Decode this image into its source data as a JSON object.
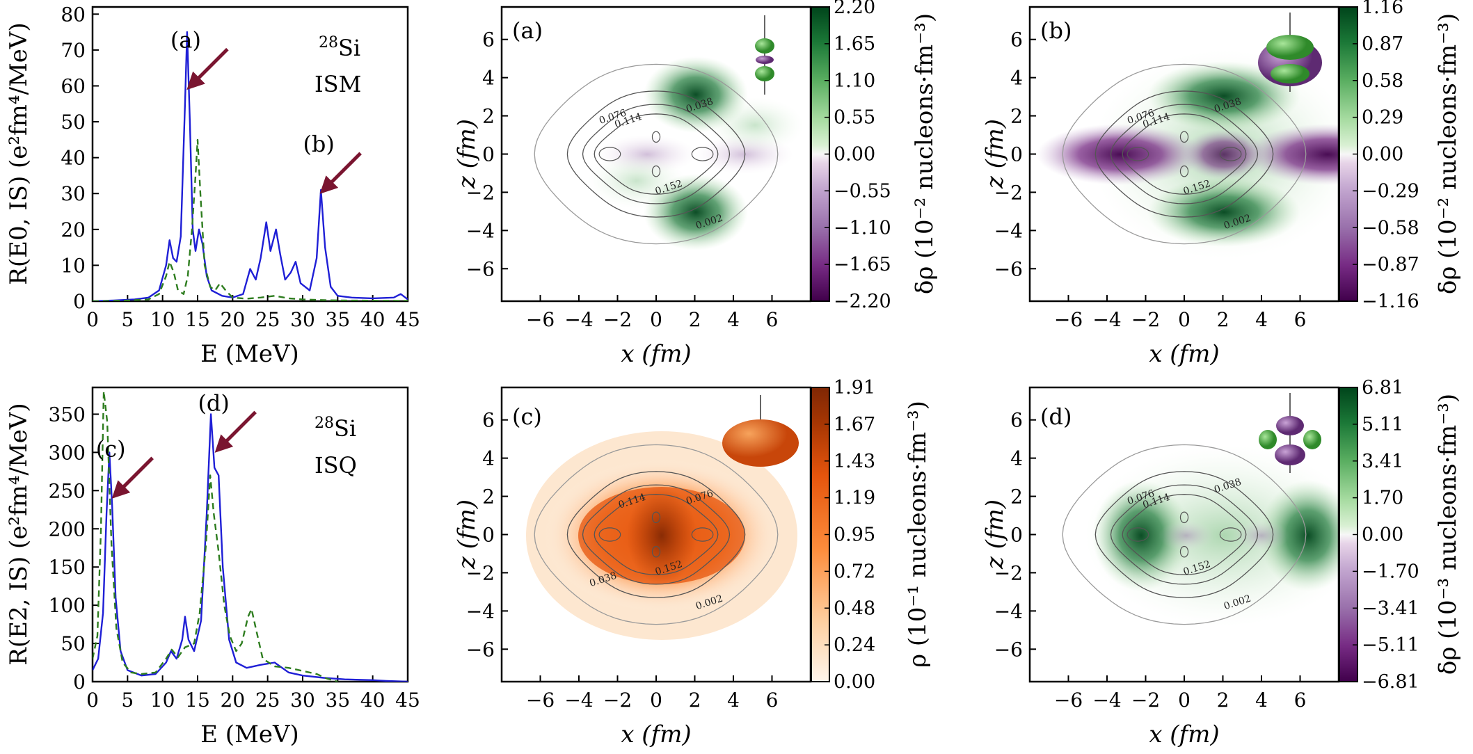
{
  "chart_data": [
    {
      "id": "top-left",
      "type": "line",
      "xlabel": "E (MeV)",
      "ylabel": "R(E0, IS) (e²fm⁴/MeV)",
      "xlim": [
        0,
        45
      ],
      "ylim": [
        0,
        82
      ],
      "xticks": [
        0,
        5,
        10,
        15,
        20,
        25,
        30,
        35,
        40,
        45
      ],
      "yticks": [
        0,
        10,
        20,
        30,
        40,
        50,
        60,
        70,
        80
      ],
      "annotation": {
        "nucleus": "28",
        "element": "Si",
        "mode": "ISM"
      },
      "arrows": [
        {
          "label": "(a)",
          "x": 13.5,
          "y": 59
        },
        {
          "label": "(b)",
          "x": 32.5,
          "y": 30
        }
      ],
      "series": [
        {
          "style": "solid",
          "color": "#1f1fd6",
          "points": [
            [
              0,
              0
            ],
            [
              3,
              0.2
            ],
            [
              6,
              0.5
            ],
            [
              8,
              1
            ],
            [
              9.5,
              3
            ],
            [
              10.5,
              10
            ],
            [
              11,
              17
            ],
            [
              11.5,
              12
            ],
            [
              12,
              11
            ],
            [
              12.6,
              18
            ],
            [
              13.2,
              55
            ],
            [
              13.5,
              75
            ],
            [
              13.9,
              50
            ],
            [
              14.3,
              20
            ],
            [
              14.7,
              14
            ],
            [
              15.2,
              20
            ],
            [
              15.7,
              16
            ],
            [
              16.3,
              7
            ],
            [
              17,
              3
            ],
            [
              18.5,
              1.5
            ],
            [
              20,
              1
            ],
            [
              21.5,
              2
            ],
            [
              22.5,
              9
            ],
            [
              23.3,
              6
            ],
            [
              24,
              12
            ],
            [
              24.8,
              22
            ],
            [
              25.4,
              14
            ],
            [
              26.2,
              20
            ],
            [
              26.8,
              13
            ],
            [
              27.5,
              6
            ],
            [
              28.3,
              8
            ],
            [
              29,
              11
            ],
            [
              29.7,
              5
            ],
            [
              31,
              3
            ],
            [
              32,
              12
            ],
            [
              32.6,
              31
            ],
            [
              33.2,
              15
            ],
            [
              34,
              4
            ],
            [
              35,
              1.5
            ],
            [
              37,
              1
            ],
            [
              40,
              0.8
            ],
            [
              43,
              1
            ],
            [
              44,
              2
            ],
            [
              45,
              0.5
            ]
          ]
        },
        {
          "style": "dashed",
          "color": "#2e7d1f",
          "points": [
            [
              0,
              0
            ],
            [
              5,
              0.2
            ],
            [
              8,
              0.5
            ],
            [
              9.5,
              2
            ],
            [
              10.5,
              7
            ],
            [
              11,
              11
            ],
            [
              11.6,
              8
            ],
            [
              12.2,
              3
            ],
            [
              13,
              2
            ],
            [
              13.6,
              7
            ],
            [
              14.2,
              20
            ],
            [
              14.7,
              35
            ],
            [
              15,
              45
            ],
            [
              15.4,
              30
            ],
            [
              16,
              10
            ],
            [
              16.8,
              4
            ],
            [
              17.5,
              3
            ],
            [
              18.2,
              5
            ],
            [
              19,
              3
            ],
            [
              20,
              1
            ],
            [
              22,
              0.7
            ],
            [
              24,
              1
            ],
            [
              26,
              1.5
            ],
            [
              28,
              0.8
            ],
            [
              30,
              0.5
            ],
            [
              33,
              0.3
            ],
            [
              36,
              0.2
            ],
            [
              45,
              0.1
            ]
          ]
        }
      ]
    },
    {
      "id": "bottom-left",
      "type": "line",
      "xlabel": "E (MeV)",
      "ylabel": "R(E2, IS) (e²fm⁴/MeV)",
      "xlim": [
        0,
        45
      ],
      "ylim": [
        0,
        385
      ],
      "xticks": [
        0,
        5,
        10,
        15,
        20,
        25,
        30,
        35,
        40,
        45
      ],
      "yticks": [
        0,
        50,
        100,
        150,
        200,
        250,
        300,
        350
      ],
      "annotation": {
        "nucleus": "28",
        "element": "Si",
        "mode": "ISQ"
      },
      "arrows": [
        {
          "label": "(c)",
          "x": 2.8,
          "y": 240
        },
        {
          "label": "(d)",
          "x": 17.5,
          "y": 300
        }
      ],
      "series": [
        {
          "style": "solid",
          "color": "#1f1fd6",
          "points": [
            [
              0,
              15
            ],
            [
              0.8,
              30
            ],
            [
              1.5,
              90
            ],
            [
              2,
              220
            ],
            [
              2.4,
              300
            ],
            [
              2.8,
              230
            ],
            [
              3.3,
              110
            ],
            [
              4,
              40
            ],
            [
              5,
              15
            ],
            [
              7,
              8
            ],
            [
              9,
              10
            ],
            [
              10.5,
              25
            ],
            [
              11.2,
              40
            ],
            [
              12,
              30
            ],
            [
              12.8,
              55
            ],
            [
              13.2,
              85
            ],
            [
              13.7,
              55
            ],
            [
              14.5,
              40
            ],
            [
              15.5,
              80
            ],
            [
              16.3,
              220
            ],
            [
              16.9,
              350
            ],
            [
              17.4,
              280
            ],
            [
              18,
              270
            ],
            [
              18.6,
              150
            ],
            [
              19.5,
              55
            ],
            [
              20.5,
              25
            ],
            [
              22,
              18
            ],
            [
              24,
              22
            ],
            [
              26,
              25
            ],
            [
              28,
              12
            ],
            [
              30,
              8
            ],
            [
              33,
              5
            ],
            [
              36,
              3
            ],
            [
              40,
              2
            ],
            [
              42,
              1
            ],
            [
              45,
              0
            ]
          ]
        },
        {
          "style": "dashed",
          "color": "#2e7d1f",
          "points": [
            [
              0,
              30
            ],
            [
              0.7,
              60
            ],
            [
              1.2,
              200
            ],
            [
              1.6,
              380
            ],
            [
              2.1,
              340
            ],
            [
              2.7,
              180
            ],
            [
              3.4,
              70
            ],
            [
              4.3,
              25
            ],
            [
              5.5,
              12
            ],
            [
              7,
              10
            ],
            [
              9,
              12
            ],
            [
              10.5,
              30
            ],
            [
              11.3,
              42
            ],
            [
              12.2,
              32
            ],
            [
              13.2,
              45
            ],
            [
              14.5,
              50
            ],
            [
              15.3,
              90
            ],
            [
              16.2,
              180
            ],
            [
              16.8,
              270
            ],
            [
              17.3,
              220
            ],
            [
              18,
              170
            ],
            [
              18.8,
              100
            ],
            [
              19.6,
              60
            ],
            [
              20.5,
              40
            ],
            [
              21.3,
              50
            ],
            [
              22.2,
              85
            ],
            [
              22.7,
              95
            ],
            [
              23.3,
              70
            ],
            [
              24.3,
              30
            ],
            [
              26,
              20
            ],
            [
              28,
              18
            ],
            [
              30,
              14
            ],
            [
              32,
              10
            ],
            [
              33.5,
              4
            ],
            [
              35,
              0
            ]
          ]
        }
      ]
    },
    {
      "id": "panel-a",
      "type": "heatmap",
      "label": "(a)",
      "xlabel": "x (fm)",
      "ylabel": "z (fm)",
      "xlim": [
        -8,
        8
      ],
      "ylim": [
        -7.7,
        7.7
      ],
      "xticks": [
        -6,
        -4,
        -2,
        0,
        2,
        4,
        6
      ],
      "yticks": [
        -6,
        -4,
        -2,
        0,
        2,
        4,
        6
      ],
      "colorbar": {
        "label": "δρ (10⁻² nucleons·fm⁻³)",
        "colormap": "PRGn",
        "ticks": [
          "2.20",
          "1.65",
          "1.10",
          "0.55",
          "0.00",
          "−0.55",
          "−1.10",
          "−1.65",
          "−2.20"
        ]
      },
      "contour_labels": [
        "0.076",
        "0.114",
        "0.038",
        "0.152",
        "0.002"
      ]
    },
    {
      "id": "panel-b",
      "type": "heatmap",
      "label": "(b)",
      "xlabel": "x (fm)",
      "ylabel": "z (fm)",
      "xlim": [
        -8,
        8
      ],
      "ylim": [
        -7.7,
        7.7
      ],
      "xticks": [
        -6,
        -4,
        -2,
        0,
        2,
        4,
        6
      ],
      "yticks": [
        -6,
        -4,
        -2,
        0,
        2,
        4,
        6
      ],
      "colorbar": {
        "label": "δρ (10⁻² nucleons·fm⁻³)",
        "colormap": "PRGn",
        "ticks": [
          "1.16",
          "0.87",
          "0.58",
          "0.29",
          "0.00",
          "−0.29",
          "−0.58",
          "−0.87",
          "−1.16"
        ]
      },
      "contour_labels": [
        "0.076",
        "0.114",
        "0.038",
        "0.152",
        "0.002"
      ]
    },
    {
      "id": "panel-c",
      "type": "heatmap",
      "label": "(c)",
      "xlabel": "x (fm)",
      "ylabel": "z (fm)",
      "xlim": [
        -8,
        8
      ],
      "ylim": [
        -7.7,
        7.7
      ],
      "xticks": [
        -6,
        -4,
        -2,
        0,
        2,
        4,
        6
      ],
      "yticks": [
        -6,
        -4,
        -2,
        0,
        2,
        4,
        6
      ],
      "colorbar": {
        "label": "ρ (10⁻¹ nucleons·fm⁻³)",
        "colormap": "Oranges",
        "ticks": [
          "1.91",
          "1.67",
          "1.43",
          "1.19",
          "0.95",
          "0.72",
          "0.48",
          "0.24",
          "0.00"
        ]
      },
      "contour_labels": [
        "0.114",
        "0.076",
        "0.152",
        "0.038",
        "0.002"
      ]
    },
    {
      "id": "panel-d",
      "type": "heatmap",
      "label": "(d)",
      "xlabel": "x (fm)",
      "ylabel": "z (fm)",
      "xlim": [
        -8,
        8
      ],
      "ylim": [
        -7.7,
        7.7
      ],
      "xticks": [
        -6,
        -4,
        -2,
        0,
        2,
        4,
        6
      ],
      "yticks": [
        -6,
        -4,
        -2,
        0,
        2,
        4,
        6
      ],
      "colorbar": {
        "label": "δρ (10⁻³ nucleons·fm⁻³)",
        "colormap": "PRGn",
        "ticks": [
          "6.81",
          "5.11",
          "3.41",
          "1.70",
          "0.00",
          "−1.70",
          "−3.41",
          "−5.11",
          "−6.81"
        ]
      },
      "contour_labels": [
        "0.076",
        "0.114",
        "0.038",
        "0.152",
        "0.002"
      ]
    }
  ]
}
